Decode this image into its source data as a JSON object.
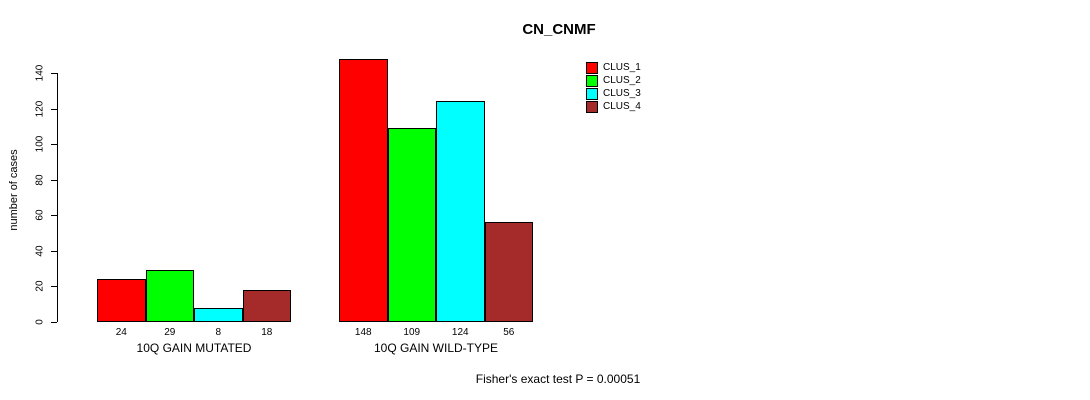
{
  "chart_data": {
    "type": "bar",
    "title": "CN_CNMF",
    "ylabel": "number of cases",
    "xlabel": "",
    "categories": [
      "10Q GAIN MUTATED",
      "10Q GAIN WILD-TYPE"
    ],
    "series": [
      {
        "name": "CLUS_1",
        "color": "#FF0000",
        "values": [
          24,
          148
        ]
      },
      {
        "name": "CLUS_2",
        "color": "#00FF00",
        "values": [
          29,
          109
        ]
      },
      {
        "name": "CLUS_3",
        "color": "#00FFFF",
        "values": [
          8,
          124
        ]
      },
      {
        "name": "CLUS_4",
        "color": "#A52A2A",
        "values": [
          18,
          56
        ]
      }
    ],
    "yticks": [
      0,
      20,
      40,
      60,
      80,
      100,
      120,
      140
    ],
    "ylim": [
      0,
      148
    ],
    "grid": false,
    "bar_value_labels": true,
    "legend_position": "top-right",
    "annotation": "Fisher's exact test P = 0.00051"
  }
}
